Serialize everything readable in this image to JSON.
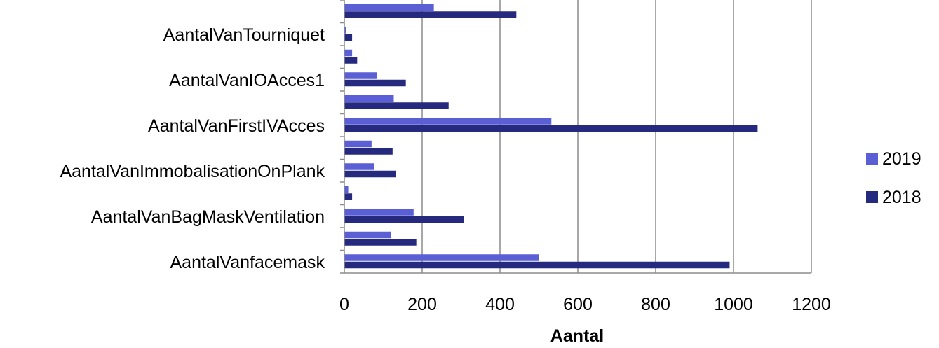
{
  "chart_data": {
    "type": "bar",
    "orientation": "horizontal",
    "categories": [
      "AantalVanfacemask",
      "",
      "AantalVanBagMaskVentilation",
      "",
      "AantalVanImmobalisationOnPlank",
      "",
      "AantalVanFirstIVAcces",
      "",
      "AantalVanIOAcces1",
      "",
      "AantalVanTourniquet",
      ""
    ],
    "series": [
      {
        "name": "2019",
        "color": "#5b5fd6",
        "values": [
          500,
          120,
          178,
          10,
          77,
          70,
          532,
          127,
          83,
          20,
          5,
          230
        ]
      },
      {
        "name": "2018",
        "color": "#252a7e",
        "values": [
          990,
          185,
          308,
          20,
          132,
          124,
          1062,
          268,
          158,
          33,
          20,
          442
        ]
      }
    ],
    "xlabel": "Aantal",
    "ylabel": "",
    "xlim": [
      0,
      1200
    ],
    "xticks": [
      "0",
      "200",
      "400",
      "600",
      "800",
      "1000",
      "1200"
    ],
    "grid": true,
    "legend": "right"
  }
}
